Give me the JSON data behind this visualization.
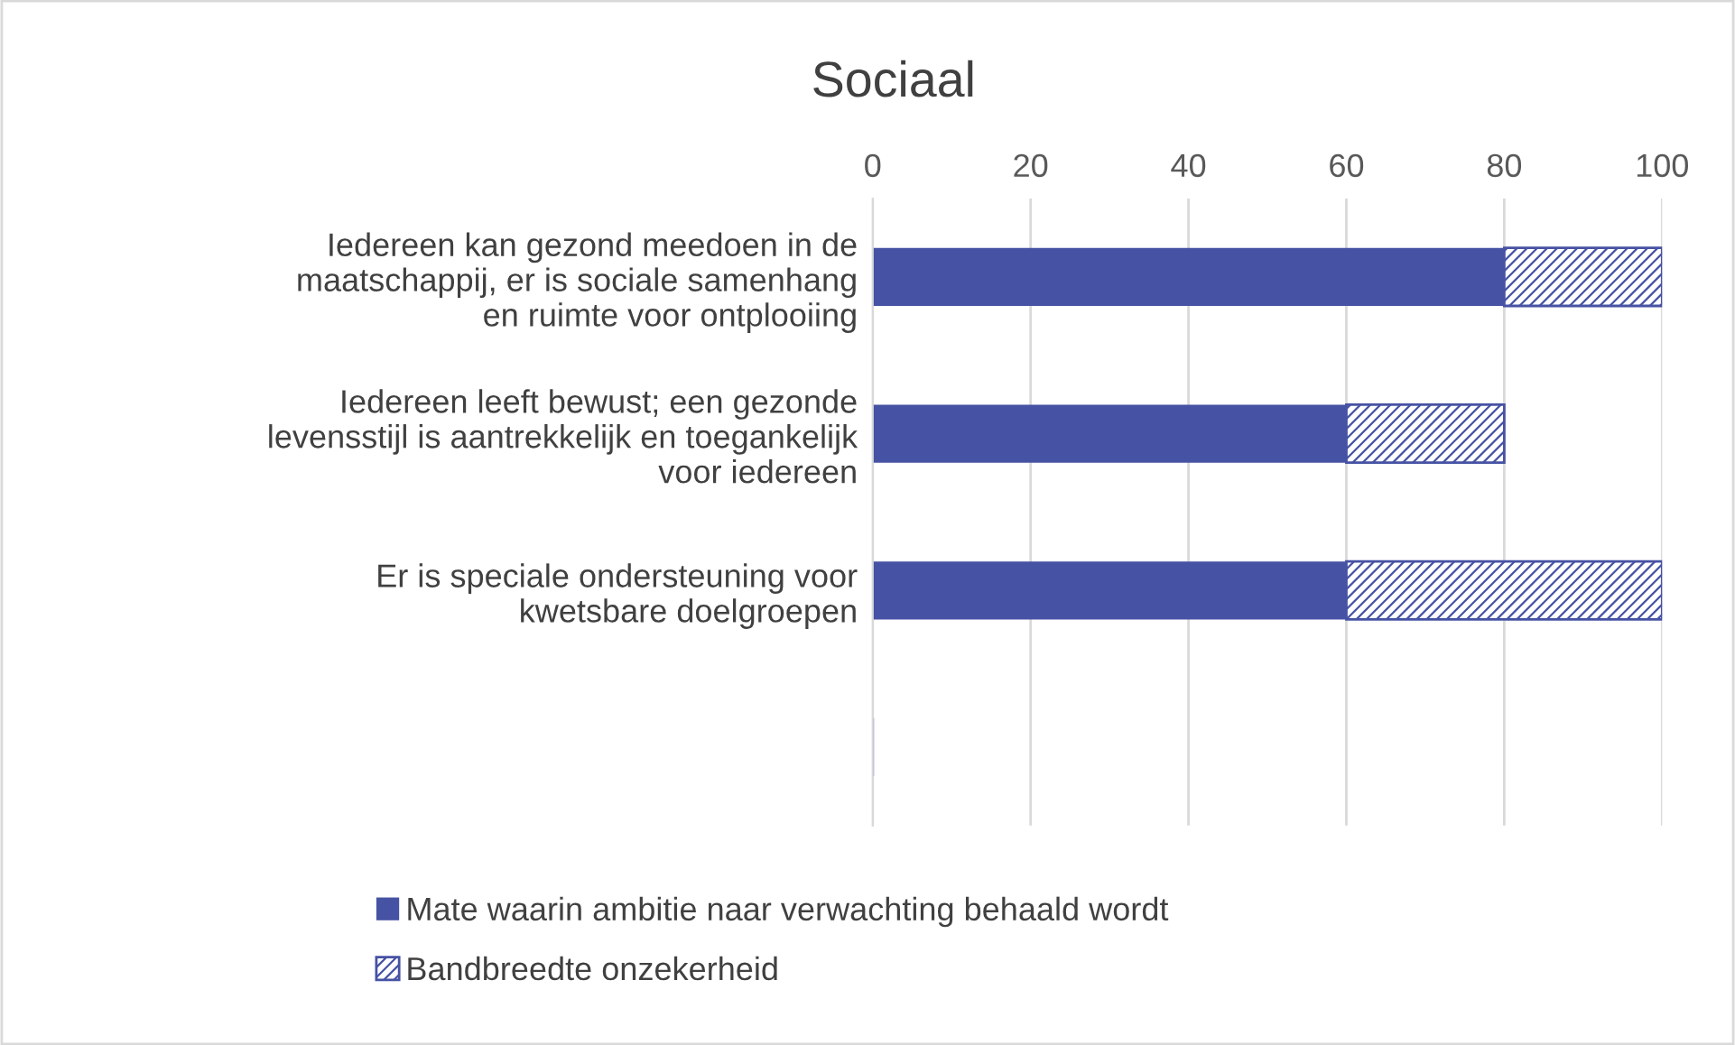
{
  "chart_data": {
    "type": "bar",
    "orientation": "horizontal",
    "stacked": true,
    "title": "Sociaal",
    "categories": [
      "Iedereen kan gezond meedoen in de\nmaatschappij, er is sociale samenhang\nen ruimte voor ontplooiing",
      "Iedereen leeft bewust; een gezonde\nlevensstijl is aantrekkelijk en toegankelijk\nvoor iedereen",
      "Er is speciale ondersteuning voor\nkwetsbare doelgroepen",
      null
    ],
    "series": [
      {
        "name": "Mate waarin ambitie naar verwachting behaald wordt",
        "color": "#4652a3",
        "values": [
          80,
          60,
          60,
          null
        ]
      },
      {
        "name": "Bandbreedte onzekerheid",
        "color": "#4652a3",
        "values": [
          20,
          20,
          40,
          null
        ]
      }
    ],
    "xlim": [
      0,
      100
    ],
    "xticks": [
      0,
      20,
      40,
      60,
      80,
      100
    ],
    "grid": "x",
    "legend": "bottom"
  }
}
